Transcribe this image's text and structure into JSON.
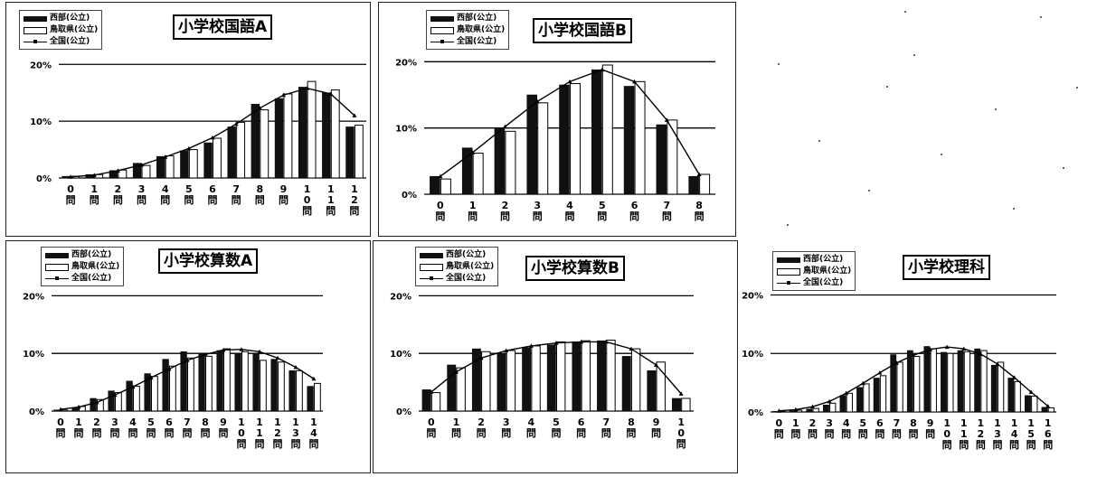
{
  "chart_data": [
    {
      "type": "bar",
      "title": "小学校国語A",
      "categories": [
        "0問",
        "1問",
        "2問",
        "3問",
        "4問",
        "5問",
        "6問",
        "7問",
        "8問",
        "9問",
        "10問",
        "11問",
        "12問"
      ],
      "tick_labels": [
        [
          "0",
          "問"
        ],
        [
          "1",
          "問"
        ],
        [
          "2",
          "問"
        ],
        [
          "3",
          "問"
        ],
        [
          "4",
          "問"
        ],
        [
          "5",
          "問"
        ],
        [
          "6",
          "問"
        ],
        [
          "7",
          "問"
        ],
        [
          "8",
          "問"
        ],
        [
          "9",
          "問"
        ],
        [
          "1",
          "0",
          "問"
        ],
        [
          "1",
          "1",
          "問"
        ],
        [
          "1",
          "2",
          "問"
        ]
      ],
      "y_ticks": [
        "0%",
        "10%",
        "20%"
      ],
      "ylim": [
        0,
        21
      ],
      "legend": [
        "西部(公立)",
        "鳥取県(公立)",
        "全国(公立)"
      ],
      "series": [
        {
          "name": "西部(公立)",
          "kind": "bar",
          "color": "#111111",
          "values": [
            0.3,
            0.6,
            1.3,
            2.6,
            3.8,
            4.8,
            6.2,
            9.0,
            13.0,
            14.0,
            16.0,
            15.0,
            9.0
          ]
        },
        {
          "name": "鳥取県(公立)",
          "kind": "bar",
          "color": "#ffffff",
          "values": [
            0.3,
            0.6,
            1.4,
            2.2,
            3.9,
            5.0,
            7.0,
            9.8,
            12.0,
            14.8,
            17.0,
            15.5,
            9.3
          ]
        },
        {
          "name": "全国(公立)",
          "kind": "line",
          "color": "#000000",
          "values": [
            0.2,
            0.5,
            1.3,
            2.3,
            3.7,
            5.2,
            7.1,
            9.5,
            12.3,
            14.6,
            15.8,
            14.8,
            11.0
          ]
        }
      ]
    },
    {
      "type": "bar",
      "title": "小学校国語B",
      "categories": [
        "0問",
        "1問",
        "2問",
        "3問",
        "4問",
        "5問",
        "6問",
        "7問",
        "8問"
      ],
      "tick_labels": [
        [
          "0",
          "問"
        ],
        [
          "1",
          "問"
        ],
        [
          "2",
          "問"
        ],
        [
          "3",
          "問"
        ],
        [
          "4",
          "問"
        ],
        [
          "5",
          "問"
        ],
        [
          "6",
          "問"
        ],
        [
          "7",
          "問"
        ],
        [
          "8",
          "問"
        ]
      ],
      "y_ticks": [
        "0%",
        "10%",
        "20%"
      ],
      "ylim": [
        0,
        21
      ],
      "legend": [
        "西部(公立)",
        "鳥取県(公立)",
        "全国(公立)"
      ],
      "series": [
        {
          "name": "西部(公立)",
          "kind": "bar",
          "color": "#111111",
          "values": [
            2.7,
            7.0,
            10.0,
            15.0,
            16.5,
            18.8,
            16.3,
            10.5,
            2.7
          ]
        },
        {
          "name": "鳥取県(公立)",
          "kind": "bar",
          "color": "#ffffff",
          "values": [
            2.3,
            6.2,
            9.5,
            13.8,
            16.7,
            19.5,
            17.0,
            11.2,
            3.0
          ]
        },
        {
          "name": "全国(公立)",
          "kind": "line",
          "color": "#000000",
          "values": [
            2.7,
            6.3,
            10.2,
            14.0,
            17.0,
            18.8,
            17.0,
            11.2,
            3.0
          ]
        }
      ]
    },
    {
      "type": "bar",
      "title": "小学校算数A",
      "categories": [
        "0問",
        "1問",
        "2問",
        "3問",
        "4問",
        "5問",
        "6問",
        "7問",
        "8問",
        "9問",
        "10問",
        "11問",
        "12問",
        "13問",
        "14問"
      ],
      "tick_labels": [
        [
          "0",
          "問"
        ],
        [
          "1",
          "問"
        ],
        [
          "2",
          "問"
        ],
        [
          "3",
          "問"
        ],
        [
          "4",
          "問"
        ],
        [
          "5",
          "問"
        ],
        [
          "6",
          "問"
        ],
        [
          "7",
          "問"
        ],
        [
          "8",
          "問"
        ],
        [
          "9",
          "問"
        ],
        [
          "1",
          "0",
          "問"
        ],
        [
          "1",
          "1",
          "問"
        ],
        [
          "1",
          "2",
          "問"
        ],
        [
          "1",
          "3",
          "問"
        ],
        [
          "1",
          "4",
          "問"
        ]
      ],
      "y_ticks": [
        "0%",
        "10%",
        "20%"
      ],
      "ylim": [
        0,
        21
      ],
      "legend": [
        "西部(公立)",
        "鳥取県(公立)",
        "全国(公立)"
      ],
      "series": [
        {
          "name": "西部(公立)",
          "kind": "bar",
          "color": "#111111",
          "values": [
            0.2,
            0.6,
            2.2,
            3.5,
            5.2,
            6.5,
            9.0,
            10.3,
            10.0,
            10.5,
            10.0,
            10.0,
            9.0,
            7.0,
            4.3
          ]
        },
        {
          "name": "鳥取県(公立)",
          "kind": "bar",
          "color": "#ffffff",
          "values": [
            0.2,
            0.8,
            2.0,
            3.2,
            4.3,
            6.0,
            7.8,
            9.2,
            9.5,
            10.8,
            10.3,
            8.8,
            8.5,
            7.0,
            4.8
          ]
        },
        {
          "name": "全国(公立)",
          "kind": "line",
          "color": "#000000",
          "values": [
            0.3,
            0.7,
            1.5,
            2.8,
            4.2,
            5.8,
            7.3,
            8.8,
            9.8,
            10.6,
            10.7,
            10.3,
            9.2,
            7.6,
            5.6
          ]
        }
      ]
    },
    {
      "type": "bar",
      "title": "小学校算数B",
      "categories": [
        "0問",
        "1問",
        "2問",
        "3問",
        "4問",
        "5問",
        "6問",
        "7問",
        "8問",
        "9問",
        "10問"
      ],
      "tick_labels": [
        [
          "0",
          "問"
        ],
        [
          "1",
          "問"
        ],
        [
          "2",
          "問"
        ],
        [
          "3",
          "問"
        ],
        [
          "4",
          "問"
        ],
        [
          "5",
          "問"
        ],
        [
          "6",
          "問"
        ],
        [
          "7",
          "問"
        ],
        [
          "8",
          "問"
        ],
        [
          "9",
          "問"
        ],
        [
          "1",
          "0",
          "問"
        ]
      ],
      "y_ticks": [
        "0%",
        "10%",
        "20%"
      ],
      "ylim": [
        0,
        21
      ],
      "legend": [
        "西部(公立)",
        "鳥取県(公立)",
        "全国(公立)"
      ],
      "series": [
        {
          "name": "西部(公立)",
          "kind": "bar",
          "color": "#111111",
          "values": [
            3.7,
            8.0,
            10.8,
            10.0,
            11.0,
            11.5,
            12.0,
            12.2,
            9.5,
            7.0,
            2.2
          ]
        },
        {
          "name": "鳥取県(公立)",
          "kind": "bar",
          "color": "#ffffff",
          "values": [
            3.2,
            7.5,
            10.3,
            10.5,
            11.3,
            12.0,
            12.2,
            12.3,
            10.8,
            8.5,
            2.2
          ]
        },
        {
          "name": "全国(公立)",
          "kind": "line",
          "color": "#000000",
          "values": [
            3.3,
            6.8,
            9.2,
            10.5,
            11.3,
            11.8,
            12.0,
            12.0,
            10.8,
            8.0,
            3.0
          ]
        }
      ]
    },
    {
      "type": "bar",
      "title": "小学校理科",
      "categories": [
        "0問",
        "1問",
        "2問",
        "3問",
        "4問",
        "5問",
        "6問",
        "7問",
        "8問",
        "9問",
        "10問",
        "11問",
        "12問",
        "13問",
        "14問",
        "15問",
        "16問"
      ],
      "tick_labels": [
        [
          "0",
          "問"
        ],
        [
          "1",
          "問"
        ],
        [
          "2",
          "問"
        ],
        [
          "3",
          "問"
        ],
        [
          "4",
          "問"
        ],
        [
          "5",
          "問"
        ],
        [
          "6",
          "問"
        ],
        [
          "7",
          "問"
        ],
        [
          "8",
          "問"
        ],
        [
          "9",
          "問"
        ],
        [
          "1",
          "0",
          "問"
        ],
        [
          "1",
          "1",
          "問"
        ],
        [
          "1",
          "2",
          "問"
        ],
        [
          "1",
          "3",
          "問"
        ],
        [
          "1",
          "4",
          "問"
        ],
        [
          "1",
          "5",
          "問"
        ],
        [
          "1",
          "6",
          "問"
        ]
      ],
      "y_ticks": [
        "0%",
        "10%",
        "20%"
      ],
      "ylim": [
        0,
        21
      ],
      "legend": [
        "西部(公立)",
        "鳥取県(公立)",
        "全国(公立)"
      ],
      "series": [
        {
          "name": "西部(公立)",
          "kind": "bar",
          "color": "#111111",
          "values": [
            0.1,
            0.2,
            0.5,
            1.2,
            2.8,
            4.2,
            5.8,
            9.8,
            10.5,
            11.2,
            10.2,
            10.5,
            10.8,
            8.0,
            5.8,
            2.8,
            0.8
          ]
        },
        {
          "name": "鳥取県(公立)",
          "kind": "bar",
          "color": "#ffffff",
          "values": [
            0.1,
            0.3,
            0.6,
            1.5,
            3.2,
            4.8,
            6.2,
            8.5,
            9.5,
            10.8,
            10.0,
            10.3,
            10.5,
            8.5,
            5.2,
            2.7,
            0.7
          ]
        },
        {
          "name": "全国(公立)",
          "kind": "line",
          "color": "#000000",
          "values": [
            0.2,
            0.4,
            0.9,
            1.8,
            3.2,
            4.9,
            6.7,
            8.4,
            9.7,
            10.7,
            11.1,
            10.8,
            9.9,
            8.2,
            5.9,
            3.4,
            1.0
          ]
        }
      ]
    }
  ]
}
